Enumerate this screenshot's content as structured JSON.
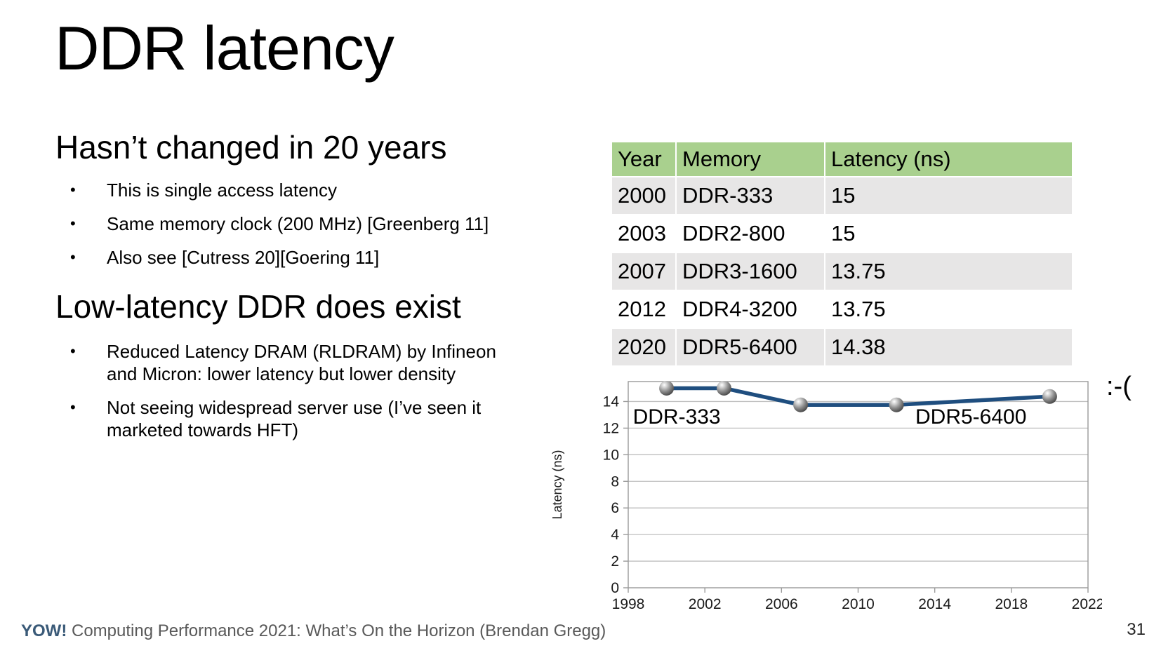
{
  "slide": {
    "title": "DDR latency",
    "page_number": "31",
    "footer": {
      "brand": "YOW!",
      "brand_color": "#3a5a78",
      "text": "Computing Performance 2021: What’s On the Horizon (Brendan Gregg)",
      "text_color": "#595959"
    }
  },
  "sections": [
    {
      "heading": "Hasn’t changed in 20 years",
      "bullets": [
        "This is single access latency",
        "Same memory clock (200 MHz) [Greenberg 11]",
        "Also see [Cutress 20][Goering 11]"
      ]
    },
    {
      "heading": "Low-latency DDR does exist",
      "bullets": [
        "Reduced Latency DRAM (RLDRAM) by Infineon\nand Micron: lower latency but lower density",
        "Not seeing widespread server use (I’ve seen it\nmarketed towards HFT)"
      ]
    }
  ],
  "table": {
    "headers": [
      "Year",
      "Memory",
      "Latency (ns)"
    ],
    "rows": [
      [
        "2000",
        "DDR-333",
        "15"
      ],
      [
        "2003",
        "DDR2-800",
        "15"
      ],
      [
        "2007",
        "DDR3-1600",
        "13.75"
      ],
      [
        "2012",
        "DDR4-3200",
        "13.75"
      ],
      [
        "2020",
        "DDR5-6400",
        "14.38"
      ]
    ],
    "header_bg": "#a9d08e",
    "stripe_bg": "#e7e6e6",
    "plain_bg": "#ffffff"
  },
  "chart_data": {
    "type": "line",
    "title": "",
    "xlabel": "",
    "ylabel": "Latency (ns)",
    "x": [
      2000,
      2003,
      2007,
      2012,
      2020
    ],
    "values": [
      15,
      15,
      13.75,
      13.75,
      14.38
    ],
    "point_names": [
      "DDR-333",
      "DDR2-800",
      "DDR3-1600",
      "DDR4-3200",
      "DDR5-6400"
    ],
    "xlim": [
      1998,
      2022
    ],
    "ylim": [
      0,
      15.5
    ],
    "x_ticks": [
      1998,
      2002,
      2006,
      2010,
      2014,
      2018,
      2022
    ],
    "y_ticks": [
      0,
      2,
      4,
      6,
      8,
      10,
      12,
      14
    ],
    "grid": "horizontal",
    "legend": "none",
    "line_color": "#1f4e7f",
    "grid_color": "#bfbfbf",
    "axis_color": "#9a9a9a",
    "first_point_label": "DDR-333",
    "last_point_label": "DDR5-6400",
    "annotation": ":-("
  }
}
